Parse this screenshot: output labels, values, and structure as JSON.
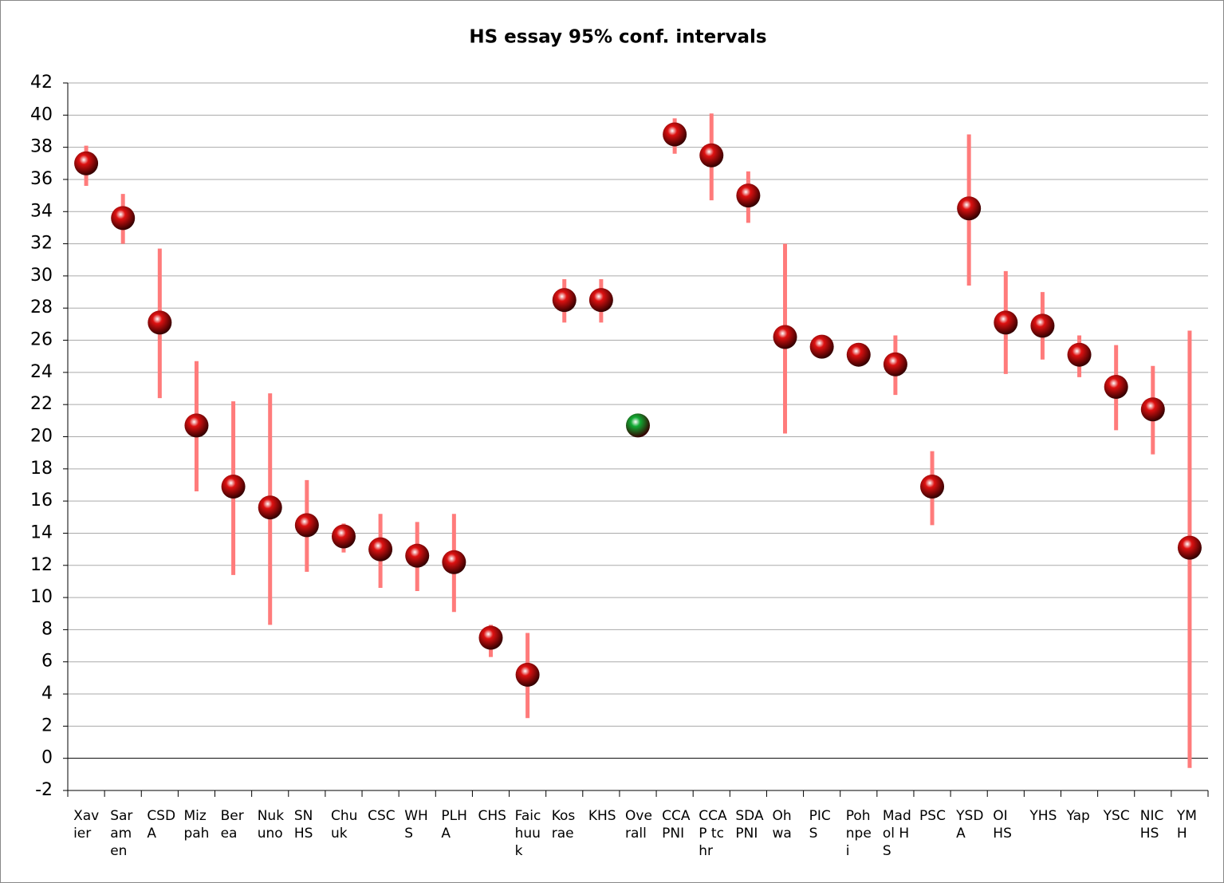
{
  "chart_data": {
    "type": "dot_interval",
    "title": "HS essay 95% conf. intervals",
    "categories": [
      "Xavier",
      "Saramen",
      "CSDA",
      "Mizpah",
      "Berea",
      "Nukuno",
      "SNHS",
      "Chuuk",
      "CSC",
      "WHS",
      "PLHA",
      "CHS",
      "Faichuuk",
      "Kosrae",
      "KHS",
      "Overall",
      "CCA PNI",
      "CCAP tchr",
      "SDA PNI",
      "Ohwa",
      "PICS",
      "Pohnpei",
      "Madol HS",
      "PSC",
      "YSDA",
      "OI HS",
      "YHS",
      "Yap",
      "YSC",
      "NIC HS",
      "YMH"
    ],
    "values": [
      37.0,
      33.6,
      27.1,
      20.7,
      16.9,
      15.6,
      14.5,
      13.8,
      13.0,
      12.6,
      12.2,
      7.5,
      5.2,
      28.5,
      28.5,
      20.7,
      38.8,
      37.5,
      35.0,
      26.2,
      25.6,
      25.1,
      24.5,
      16.9,
      34.2,
      27.1,
      26.9,
      25.1,
      23.1,
      21.7,
      13.1
    ],
    "low": [
      35.6,
      32.0,
      22.4,
      16.6,
      11.4,
      8.3,
      11.6,
      12.8,
      10.6,
      10.4,
      9.1,
      6.3,
      2.5,
      27.1,
      27.1,
      null,
      37.6,
      34.7,
      33.3,
      20.2,
      24.9,
      24.7,
      22.6,
      14.5,
      29.4,
      23.9,
      24.8,
      23.7,
      20.4,
      18.9,
      -0.6
    ],
    "high": [
      38.1,
      35.1,
      31.7,
      24.7,
      22.2,
      22.7,
      17.3,
      14.6,
      15.2,
      14.7,
      15.2,
      8.3,
      7.8,
      29.8,
      29.8,
      null,
      39.8,
      40.1,
      36.5,
      32.0,
      26.2,
      25.5,
      26.3,
      19.1,
      38.8,
      30.3,
      29.0,
      26.3,
      25.7,
      24.4,
      26.6
    ],
    "point_colors": [
      "#dd1111",
      "#dd1111",
      "#dd1111",
      "#dd1111",
      "#dd1111",
      "#dd1111",
      "#dd1111",
      "#dd1111",
      "#dd1111",
      "#dd1111",
      "#dd1111",
      "#dd1111",
      "#dd1111",
      "#dd1111",
      "#dd1111",
      "#11aa33",
      "#dd1111",
      "#dd1111",
      "#dd1111",
      "#dd1111",
      "#dd1111",
      "#dd1111",
      "#dd1111",
      "#dd1111",
      "#dd1111",
      "#dd1111",
      "#dd1111",
      "#dd1111",
      "#dd1111",
      "#dd1111",
      "#dd1111"
    ],
    "interval_color": "#ff7b7b",
    "ylim": [
      -2,
      42
    ],
    "yticks": [
      -2,
      0,
      2,
      4,
      6,
      8,
      10,
      12,
      14,
      16,
      18,
      20,
      22,
      24,
      26,
      28,
      30,
      32,
      34,
      36,
      38,
      40,
      42
    ],
    "grid": true
  }
}
